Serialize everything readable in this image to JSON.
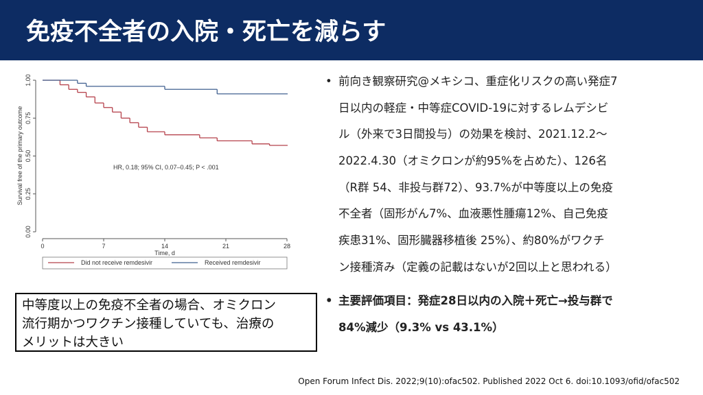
{
  "header": {
    "title": "免疫不全者の入院・死亡を減らす"
  },
  "chart_data": {
    "type": "step",
    "y_label": "Survival free of the primary outcome",
    "x_label": "Time, d",
    "annotation": "HR, 0.18; 95% CI, 0.07–0.45; P < .001",
    "xlim": [
      0,
      28
    ],
    "xticks": [
      0,
      7,
      14,
      21,
      28
    ],
    "ylim": [
      0,
      1
    ],
    "yticks": [
      {
        "value": 0,
        "label": "0.00"
      },
      {
        "value": 0.25,
        "label": "0.25"
      },
      {
        "value": 0.5,
        "label": "0.50"
      },
      {
        "value": 0.75,
        "label": "0.75"
      },
      {
        "value": 1,
        "label": "1.00"
      }
    ],
    "series": [
      {
        "name": "Did not receive remdesivir",
        "color": "#b5404a",
        "x": [
          0,
          2,
          3,
          4,
          5,
          6,
          7,
          8,
          9,
          10,
          11,
          12,
          14,
          18,
          20,
          24,
          26,
          28
        ],
        "values": [
          1,
          0.97,
          0.94,
          0.92,
          0.89,
          0.85,
          0.82,
          0.79,
          0.75,
          0.72,
          0.69,
          0.66,
          0.64,
          0.62,
          0.6,
          0.58,
          0.57,
          0.57
        ]
      },
      {
        "name": "Received remdesivir",
        "color": "#3f5f8f",
        "x": [
          0,
          4,
          5,
          14,
          20,
          28
        ],
        "values": [
          1,
          0.98,
          0.96,
          0.94,
          0.91,
          0.91
        ]
      }
    ]
  },
  "bullets": [
    {
      "lines": [
        "前向き観察研究@メキシコ、重症化リスクの高い発症7",
        "日以内の軽症・中等症COVID-19に対するレムデシビ",
        "ル（外来で3日間投与）の効果を検討、2021.12.2～",
        "2022.4.30（オミクロンが約95%を占めた）、126名",
        "（R群 54、非投与群72）、93.7%が中等度以上の免疫",
        "不全者（固形がん7%、血液悪性腫瘍12%、自己免疫",
        "疾患31%、固形臓器移植後 25%）、約80%がワクチ",
        "ン接種済み（定義の記載はないが2回以上と思われる）"
      ]
    },
    {
      "lines": [
        "主要評価項目：発症28日以内の入院＋死亡→投与群で",
        "84%減少（9.3% vs 43.1%）"
      ]
    }
  ],
  "note": {
    "lines": [
      "中等度以上の免疫不全者の場合、オミクロン",
      "流行期かつワクチン接種していても、治療の",
      "メリットは大きい"
    ]
  },
  "citation": "Open Forum Infect Dis. 2022;9(10):ofac502. Published 2022 Oct 6. doi:10.1093/ofid/ofac502"
}
